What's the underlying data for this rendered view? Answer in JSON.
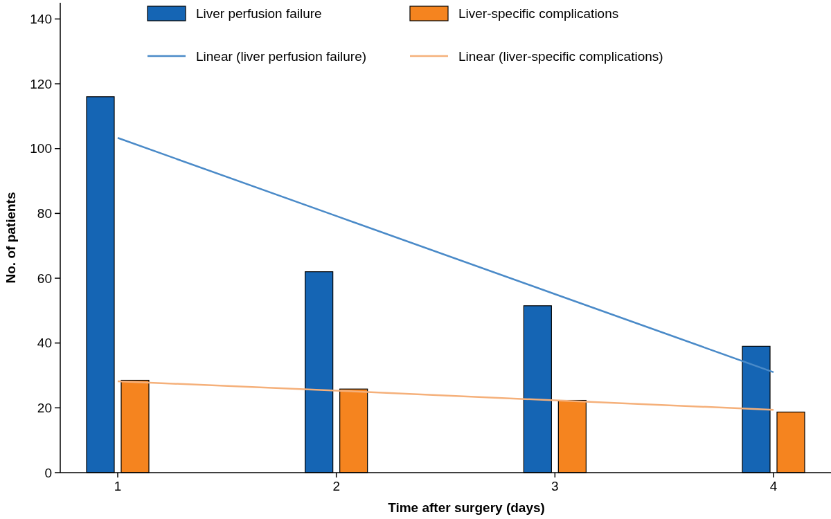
{
  "chart_data": {
    "type": "bar",
    "xlabel": "Time after surgery (days)",
    "ylabel": "No. of patients",
    "categories": [
      "1",
      "2",
      "3",
      "4"
    ],
    "series": [
      {
        "name": "Liver perfusion failure",
        "color": "#1565b4",
        "values": [
          116,
          62,
          51.5,
          39
        ]
      },
      {
        "name": "Liver-specific complications",
        "color": "#f5841f",
        "values": [
          28.5,
          25.8,
          22.3,
          18.7
        ]
      },
      {
        "name": "Linear (liver perfusion failure)",
        "type": "line",
        "color": "#4a8ac8",
        "values": [
          103.3,
          79.2,
          55.1,
          31
        ]
      },
      {
        "name": "Linear (liver-specific complications)",
        "type": "line",
        "color": "#f5b07a",
        "values": [
          28.2,
          25.3,
          22.3,
          19.4
        ]
      }
    ],
    "ylim": [
      0,
      145
    ],
    "yticks": [
      0,
      20,
      40,
      60,
      80,
      100,
      120,
      140
    ],
    "grid": false,
    "legend": "top",
    "marker": "none",
    "line_style": "solid"
  }
}
